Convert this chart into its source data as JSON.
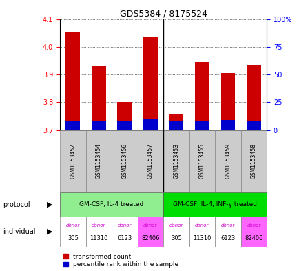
{
  "title": "GDS5384 / 8175524",
  "samples": [
    "GSM1153452",
    "GSM1153454",
    "GSM1153456",
    "GSM1153457",
    "GSM1153453",
    "GSM1153455",
    "GSM1153459",
    "GSM1153458"
  ],
  "red_values": [
    4.055,
    3.93,
    3.8,
    4.035,
    3.755,
    3.945,
    3.905,
    3.935
  ],
  "blue_values": [
    3.735,
    3.735,
    3.735,
    3.74,
    3.735,
    3.735,
    3.737,
    3.735
  ],
  "bar_bottom": 3.7,
  "ylim_left": [
    3.7,
    4.1
  ],
  "ylim_right": [
    0,
    100
  ],
  "yticks_left": [
    3.7,
    3.8,
    3.9,
    4.0,
    4.1
  ],
  "yticks_right": [
    0,
    25,
    50,
    75,
    100
  ],
  "ytick_labels_right": [
    "0",
    "25",
    "50",
    "75",
    "100%"
  ],
  "protocol_groups": [
    {
      "label": "GM-CSF, IL-4 treated",
      "start": 0,
      "end": 3,
      "color": "#90ee90"
    },
    {
      "label": "GM-CSF, IL-4, INF-γ treated",
      "start": 4,
      "end": 7,
      "color": "#00dd00"
    }
  ],
  "donors": [
    "305",
    "11310",
    "6123",
    "82406",
    "305",
    "11310",
    "6123",
    "82406"
  ],
  "donor_colors": [
    "#ffffff",
    "#ffffff",
    "#ffffff",
    "#ff66ff",
    "#ffffff",
    "#ffffff",
    "#ffffff",
    "#ff66ff"
  ],
  "donor_text_colors": [
    "#cc00cc",
    "#cc00cc",
    "#cc00cc",
    "#cc00cc",
    "#cc00cc",
    "#cc00cc",
    "#cc00cc",
    "#cc00cc"
  ],
  "red_color": "#cc0000",
  "blue_color": "#0000cc",
  "bar_width": 0.55,
  "legend_red": "transformed count",
  "legend_blue": "percentile rank within the sample"
}
